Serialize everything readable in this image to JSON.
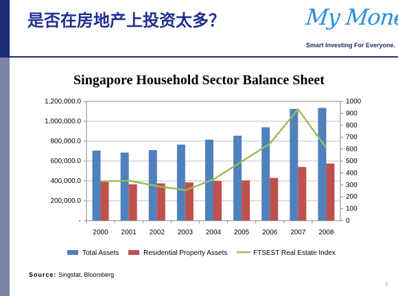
{
  "slide": {
    "title": "是否在房地产上投资太多？",
    "source_label": "Source:",
    "source_text": "Singstat, Bloomberg",
    "page_number": "3"
  },
  "logo": {
    "name": "My Money",
    "tagline": "Smart Investing For Everyone."
  },
  "chart_data": {
    "type": "bar",
    "title": "Singapore Household Sector Balance Sheet",
    "categories": [
      "2000",
      "2001",
      "2002",
      "2003",
      "2004",
      "2005",
      "2006",
      "2007",
      "2008"
    ],
    "y_left": {
      "range": [
        0,
        1200000
      ],
      "ticks": [
        "-",
        "200,000.0",
        "400,000.0",
        "600,000.0",
        "800,000.0",
        "1,000,000.0",
        "1,200,000.0"
      ]
    },
    "y_right": {
      "range": [
        0,
        1000
      ],
      "ticks": [
        "0",
        "100",
        "200",
        "300",
        "400",
        "500",
        "600",
        "700",
        "800",
        "900",
        "1000"
      ]
    },
    "series": [
      {
        "name": "Total Assets",
        "type": "bar",
        "axis": "left",
        "color": "#4f81bd",
        "values": [
          705000,
          685000,
          710000,
          765000,
          815000,
          855000,
          940000,
          1125000,
          1135000
        ]
      },
      {
        "name": "Residential Property Assets",
        "type": "bar",
        "axis": "left",
        "color": "#c0504d",
        "values": [
          400000,
          365000,
          375000,
          385000,
          400000,
          405000,
          430000,
          540000,
          575000
        ]
      },
      {
        "name": "FTSEST Real Estate Index",
        "type": "line",
        "axis": "right",
        "color": "#9bbb59",
        "values": [
          330,
          335,
          290,
          255,
          345,
          495,
          645,
          935,
          610
        ]
      }
    ],
    "grid": true,
    "legend": "bottom"
  }
}
